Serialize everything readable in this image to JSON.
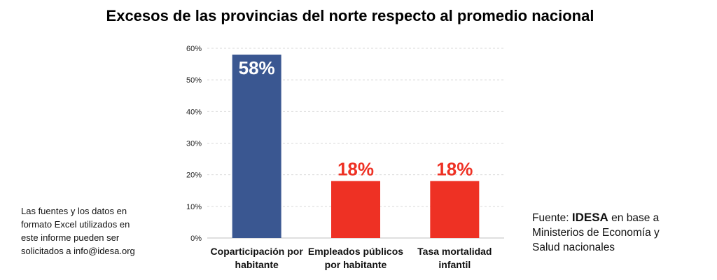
{
  "chart_data": {
    "type": "bar",
    "title": "Excesos de las provincias del norte respecto al promedio nacional",
    "categories": [
      [
        "Coparticipación por",
        "habitante"
      ],
      [
        "Empleados públicos",
        "por habitante"
      ],
      [
        "Tasa mortalidad",
        "infantil"
      ]
    ],
    "values": [
      58,
      18,
      18
    ],
    "data_labels": [
      "58%",
      "18%",
      "18%"
    ],
    "bar_colors": [
      "#3a5791",
      "#ee3124",
      "#ee3124"
    ],
    "label_colors": [
      "#ffffff",
      "#ee3124",
      "#ee3124"
    ],
    "ylim": [
      0,
      60
    ],
    "yticks": [
      0,
      10,
      20,
      30,
      40,
      50,
      60
    ],
    "ytick_labels": [
      "0%",
      "10%",
      "20%",
      "30%",
      "40%",
      "50%",
      "60%"
    ],
    "gridlines": true,
    "xlabel": "",
    "ylabel": ""
  },
  "footnote": {
    "lines": [
      "Las fuentes y los datos en",
      "formato Excel utilizados en",
      "este informe pueden ser",
      "solicitados a info@idesa.org"
    ]
  },
  "source": {
    "prefix": "Fuente: ",
    "org": "IDESA",
    "suffix": " en base a",
    "lines": [
      "Ministerios de Economía y",
      "Salud nacionales"
    ]
  }
}
